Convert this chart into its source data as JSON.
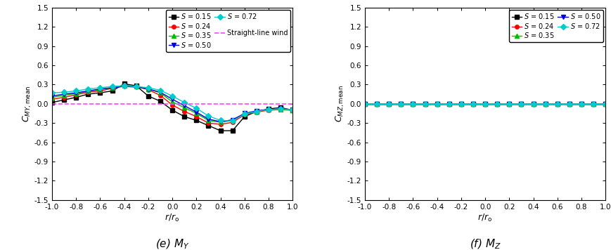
{
  "x_values": [
    -1.0,
    -0.9,
    -0.8,
    -0.7,
    -0.6,
    -0.5,
    -0.4,
    -0.3,
    -0.2,
    -0.1,
    0.0,
    0.1,
    0.2,
    0.3,
    0.4,
    0.5,
    0.6,
    0.7,
    0.8,
    0.9,
    1.0
  ],
  "S015_MY": [
    0.02,
    0.06,
    0.1,
    0.15,
    0.17,
    0.2,
    0.31,
    0.28,
    0.12,
    0.04,
    -0.1,
    -0.2,
    -0.26,
    -0.34,
    -0.42,
    -0.42,
    -0.2,
    -0.12,
    -0.08,
    -0.06,
    -0.1
  ],
  "S024_MY": [
    0.07,
    0.1,
    0.14,
    0.18,
    0.2,
    0.24,
    0.29,
    0.27,
    0.22,
    0.13,
    -0.02,
    -0.12,
    -0.2,
    -0.3,
    -0.32,
    -0.29,
    -0.17,
    -0.13,
    -0.1,
    -0.09,
    -0.1
  ],
  "S035_MY": [
    0.1,
    0.13,
    0.16,
    0.19,
    0.22,
    0.25,
    0.28,
    0.27,
    0.23,
    0.17,
    0.03,
    -0.06,
    -0.15,
    -0.26,
    -0.29,
    -0.26,
    -0.16,
    -0.12,
    -0.09,
    -0.09,
    -0.1
  ],
  "S050_MY": [
    0.12,
    0.15,
    0.17,
    0.2,
    0.23,
    0.25,
    0.27,
    0.26,
    0.23,
    0.18,
    0.07,
    -0.03,
    -0.13,
    -0.24,
    -0.28,
    -0.25,
    -0.15,
    -0.11,
    -0.09,
    -0.08,
    -0.09
  ],
  "S072_MY": [
    0.17,
    0.18,
    0.2,
    0.23,
    0.25,
    0.27,
    0.28,
    0.27,
    0.25,
    0.21,
    0.12,
    0.02,
    -0.07,
    -0.19,
    -0.26,
    -0.27,
    -0.16,
    -0.12,
    -0.09,
    -0.08,
    -0.09
  ],
  "S015_MZ": [
    0.0,
    0.0,
    0.0,
    0.0,
    0.0,
    0.0,
    0.0,
    0.0,
    0.0,
    0.0,
    0.0,
    0.0,
    0.0,
    0.0,
    0.0,
    0.0,
    0.0,
    0.0,
    0.0,
    0.0,
    0.0
  ],
  "S024_MZ": [
    0.0,
    0.0,
    0.0,
    0.0,
    0.0,
    0.0,
    0.0,
    0.0,
    0.0,
    0.0,
    0.0,
    0.0,
    0.0,
    0.0,
    0.0,
    0.0,
    0.0,
    0.0,
    0.0,
    0.0,
    0.0
  ],
  "S035_MZ": [
    0.0,
    0.0,
    0.0,
    0.0,
    0.0,
    0.0,
    0.0,
    0.0,
    0.0,
    0.0,
    0.0,
    0.0,
    0.0,
    0.0,
    0.0,
    0.0,
    0.0,
    0.0,
    0.0,
    0.0,
    0.0
  ],
  "S050_MZ": [
    0.0,
    0.0,
    0.0,
    0.0,
    0.0,
    0.0,
    0.0,
    0.0,
    0.0,
    0.0,
    0.0,
    0.0,
    0.0,
    0.0,
    0.0,
    0.0,
    0.0,
    0.0,
    0.0,
    0.0,
    0.0
  ],
  "S072_MZ": [
    0.0,
    0.0,
    0.0,
    0.0,
    0.0,
    0.0,
    0.0,
    0.0,
    0.0,
    0.0,
    0.0,
    0.0,
    0.0,
    0.0,
    0.0,
    0.0,
    0.0,
    0.0,
    0.0,
    0.0,
    0.0
  ],
  "colors": {
    "S015": "#000000",
    "S024": "#ff0000",
    "S035": "#00bb00",
    "S050": "#0000dd",
    "S072": "#00cccc"
  },
  "markers": {
    "S015": "s",
    "S024": "o",
    "S035": "^",
    "S050": "v",
    "S072": "D"
  },
  "legend_labels": {
    "S015": "$S$ = 0.15",
    "S024": "$S$ = 0.24",
    "S035": "$S$ = 0.35",
    "S050": "$S$ = 0.50",
    "S072": "$S$ = 0.72"
  },
  "straight_line_wind_label": "Straight-line wind",
  "straight_line_wind_color": "#ff44ff",
  "ylabel_MY": "$C_{MY\\sf{,mean}}$",
  "ylabel_MZ": "$C_{MZ\\sf{,mean}}$",
  "xlabel": "$r/r_{\\rm o}$",
  "caption_MY": "(e) $M_Y$",
  "caption_MZ": "(f) $M_Z$",
  "ylim": [
    -1.5,
    1.5
  ],
  "xlim": [
    -1.0,
    1.0
  ],
  "yticks": [
    -1.5,
    -1.2,
    -0.9,
    -0.6,
    -0.3,
    0.0,
    0.3,
    0.6,
    0.9,
    1.2,
    1.5
  ],
  "xticks": [
    -1.0,
    -0.8,
    -0.6,
    -0.4,
    -0.2,
    0.0,
    0.2,
    0.4,
    0.6,
    0.8,
    1.0
  ],
  "xtick_labels": [
    "-1.0",
    "-0.8",
    "-0.6",
    "-0.4",
    "-0.2",
    "0.0",
    "0.2",
    "0.4",
    "0.6",
    "0.8",
    "1.0"
  ],
  "ytick_labels": [
    "-1.5",
    "-1.2",
    "-0.9",
    "-0.6",
    "-0.3",
    "0.0",
    "0.3",
    "0.6",
    "0.9",
    "1.2",
    "1.5"
  ],
  "markersize": 4,
  "linewidth": 1.0
}
